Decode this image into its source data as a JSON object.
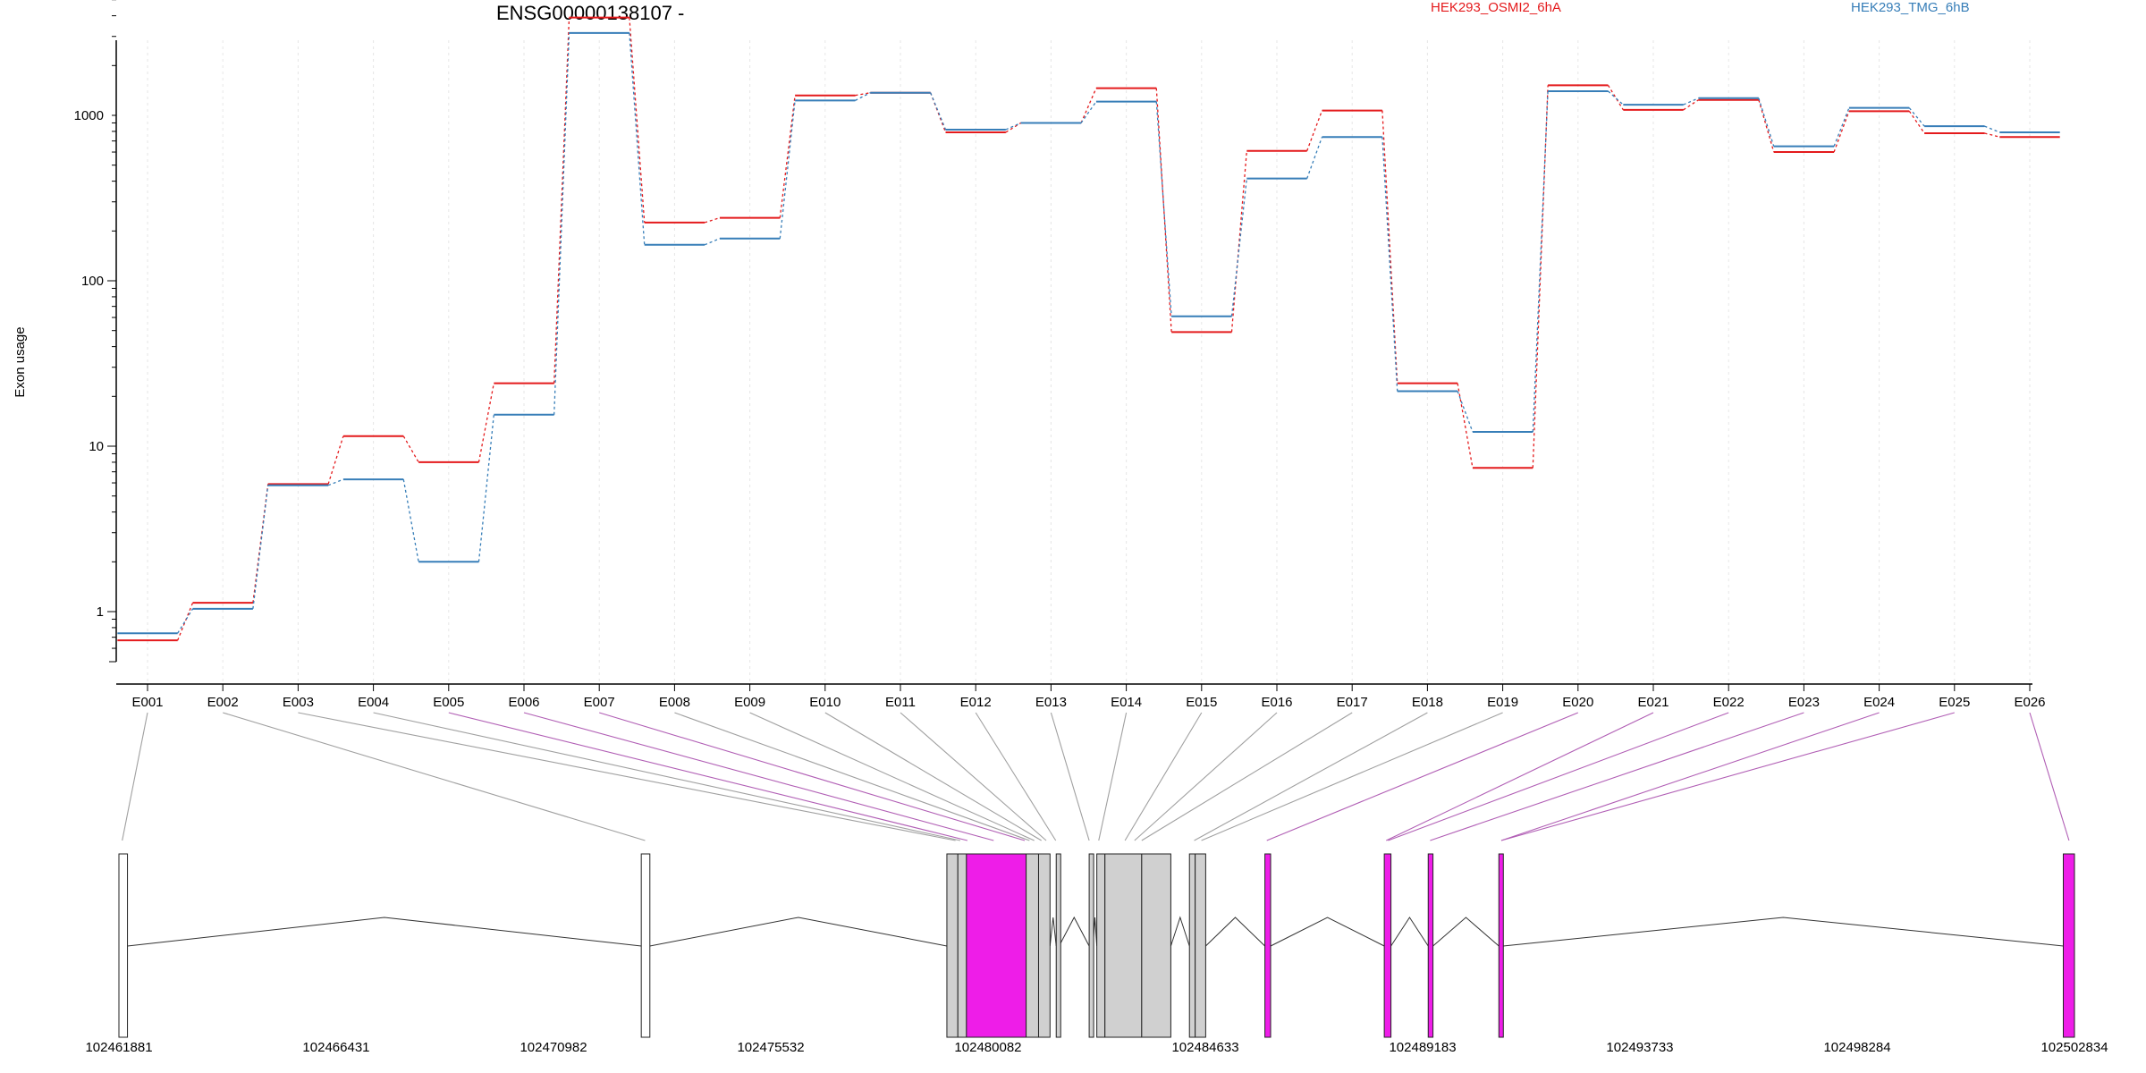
{
  "chart_data": {
    "type": "line",
    "title": "ENSG00000138107 -",
    "ylabel": "Exon usage",
    "xlabel": "",
    "yscale": "log",
    "ylim": [
      0.55,
      5800
    ],
    "y_ticks": [
      1,
      10,
      100,
      1000
    ],
    "y_tick_labels": [
      "1",
      "10",
      "100",
      "1000"
    ],
    "grid": "vertical-dotted",
    "legend_position": "top",
    "categories": [
      "E001",
      "E002",
      "E003",
      "E004",
      "E005",
      "E006",
      "E007",
      "E008",
      "E009",
      "E010",
      "E011",
      "E012",
      "E013",
      "E014",
      "E015",
      "E016",
      "E017",
      "E018",
      "E019",
      "E020",
      "E021",
      "E022",
      "E023",
      "E024",
      "E025",
      "E026"
    ],
    "series": [
      {
        "name": "HEK293_OSMI2_6hA",
        "color": "#e41a1c",
        "values": [
          0.67,
          1.13,
          5.9,
          11.5,
          8.0,
          24,
          3900,
          225,
          240,
          1320,
          1370,
          790,
          900,
          1460,
          49,
          610,
          1070,
          24,
          7.4,
          1520,
          1080,
          1240,
          600,
          1060,
          780,
          740
        ]
      },
      {
        "name": "HEK293_TMG_6hB",
        "color": "#377eb8",
        "values": [
          0.74,
          1.04,
          5.8,
          6.3,
          2.0,
          15.5,
          3150,
          165,
          180,
          1230,
          1370,
          820,
          900,
          1210,
          61,
          415,
          740,
          21.5,
          12.2,
          1400,
          1160,
          1270,
          650,
          1110,
          860,
          790
        ]
      }
    ],
    "gene_model": {
      "coordinate_ticks": [
        "102461881",
        "102466431",
        "102470982",
        "102475532",
        "102480082",
        "102484633",
        "102489183",
        "102493733",
        "102498284",
        "102502834"
      ],
      "coordinate_range": [
        102461881,
        102502834
      ],
      "exons": [
        {
          "start": 102461881,
          "end": 102462060,
          "highlight": false
        },
        {
          "start": 102472820,
          "end": 102473000,
          "highlight": false
        },
        {
          "start": 102479220,
          "end": 102479450,
          "highlight": false
        },
        {
          "start": 102479450,
          "end": 102479630,
          "highlight": false
        },
        {
          "start": 102479630,
          "end": 102480880,
          "highlight": true
        },
        {
          "start": 102480880,
          "end": 102481140,
          "highlight": false
        },
        {
          "start": 102481140,
          "end": 102481380,
          "highlight": false
        },
        {
          "start": 102481510,
          "end": 102481570,
          "highlight": false
        },
        {
          "start": 102482200,
          "end": 102482280,
          "highlight": false
        },
        {
          "start": 102482360,
          "end": 102482530,
          "highlight": false
        },
        {
          "start": 102482530,
          "end": 102483300,
          "highlight": false
        },
        {
          "start": 102483300,
          "end": 102483910,
          "highlight": false
        },
        {
          "start": 102484300,
          "end": 102484420,
          "highlight": false
        },
        {
          "start": 102484420,
          "end": 102484640,
          "highlight": false
        },
        {
          "start": 102485880,
          "end": 102486000,
          "highlight": true
        },
        {
          "start": 102488380,
          "end": 102488520,
          "highlight": true
        },
        {
          "start": 102489300,
          "end": 102489400,
          "highlight": true
        },
        {
          "start": 102490780,
          "end": 102490870,
          "highlight": true
        },
        {
          "start": 102502600,
          "end": 102502834,
          "highlight": true
        }
      ],
      "exon_map": [
        {
          "exon": "E001",
          "genomic_pos": 102461950,
          "highlight": false
        },
        {
          "exon": "E002",
          "genomic_pos": 102472900,
          "highlight": false
        },
        {
          "exon": "E003",
          "genomic_pos": 102479400,
          "highlight": false
        },
        {
          "exon": "E004",
          "genomic_pos": 102479500,
          "highlight": false
        },
        {
          "exon": "E005",
          "genomic_pos": 102479650,
          "highlight": true
        },
        {
          "exon": "E006",
          "genomic_pos": 102480200,
          "highlight": true
        },
        {
          "exon": "E007",
          "genomic_pos": 102480850,
          "highlight": true
        },
        {
          "exon": "E008",
          "genomic_pos": 102480950,
          "highlight": false
        },
        {
          "exon": "E009",
          "genomic_pos": 102481050,
          "highlight": false
        },
        {
          "exon": "E010",
          "genomic_pos": 102481200,
          "highlight": false
        },
        {
          "exon": "E011",
          "genomic_pos": 102481300,
          "highlight": false
        },
        {
          "exon": "E012",
          "genomic_pos": 102481500,
          "highlight": false
        },
        {
          "exon": "E013",
          "genomic_pos": 102482200,
          "highlight": false
        },
        {
          "exon": "E014",
          "genomic_pos": 102482400,
          "highlight": false
        },
        {
          "exon": "E015",
          "genomic_pos": 102482950,
          "highlight": false
        },
        {
          "exon": "E016",
          "genomic_pos": 102483150,
          "highlight": false
        },
        {
          "exon": "E017",
          "genomic_pos": 102483300,
          "highlight": false
        },
        {
          "exon": "E018",
          "genomic_pos": 102484400,
          "highlight": false
        },
        {
          "exon": "E019",
          "genomic_pos": 102484550,
          "highlight": false
        },
        {
          "exon": "E020",
          "genomic_pos": 102485920,
          "highlight": true
        },
        {
          "exon": "E021",
          "genomic_pos": 102488420,
          "highlight": true
        },
        {
          "exon": "E022",
          "genomic_pos": 102488460,
          "highlight": true
        },
        {
          "exon": "E023",
          "genomic_pos": 102489340,
          "highlight": true
        },
        {
          "exon": "E024",
          "genomic_pos": 102490830,
          "highlight": true
        },
        {
          "exon": "E025",
          "genomic_pos": 102490830,
          "highlight": true
        },
        {
          "exon": "E026",
          "genomic_pos": 102502720,
          "highlight": true
        }
      ],
      "exon_fill": "#d0d0d0",
      "highlight_fill": "#ee1de8",
      "connector_color": "#a0a0a0",
      "highlight_connector_color": "#b15fb5"
    }
  }
}
